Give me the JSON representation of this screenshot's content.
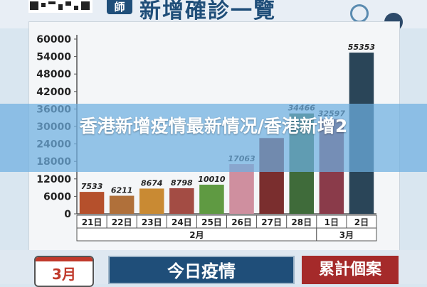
{
  "header": {
    "badge": "師",
    "title": "新增確診一覽"
  },
  "chart_data": {
    "type": "bar",
    "categories": [
      "21日",
      "22日",
      "23日",
      "24日",
      "25日",
      "26日",
      "27日",
      "28日",
      "1日",
      "2日"
    ],
    "values": [
      7533,
      6211,
      8674,
      8798,
      10010,
      17063,
      26026,
      34466,
      32597,
      55353
    ],
    "data_labels": [
      "7533",
      "6211",
      "8674",
      "8798",
      "10010",
      "17063",
      "",
      "34466",
      "32597",
      "55353"
    ],
    "colors": [
      "#b5502c",
      "#b0703a",
      "#c98a33",
      "#a34c44",
      "#5f9a42",
      "#cf8f9f",
      "#7a2e2e",
      "#3f6b3a",
      "#8a3b4a",
      "#2a4558"
    ],
    "ylim": [
      0,
      60000
    ],
    "yticks": [
      "0",
      "6000",
      "12000",
      "18000",
      "24000",
      "30000",
      "36000",
      "42000",
      "48000",
      "54000",
      "60000"
    ],
    "month_groups": [
      {
        "label": "2月",
        "span": 8
      },
      {
        "label": "3月",
        "span": 2
      }
    ],
    "grid": false
  },
  "banner": {
    "text": "香港新增疫情最新情况/香港新增2"
  },
  "bottom": {
    "calendar_label": "3月",
    "today_button": "今日疫情",
    "cumulative_button": "累計個案"
  }
}
